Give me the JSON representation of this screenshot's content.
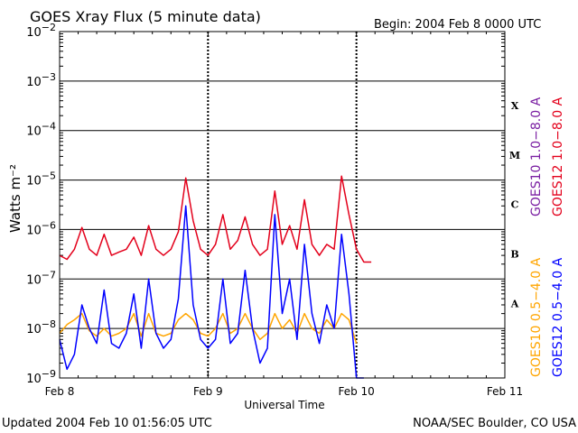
{
  "header": {
    "title": "GOES Xray Flux (5 minute data)",
    "begin": "Begin:  2004 Feb 8 0000 UTC"
  },
  "footer": {
    "updated": "Updated 2004 Feb 10 01:56:05 UTC",
    "credit": "NOAA/SEC Boulder, CO USA"
  },
  "colors": {
    "goes10_long": "#7a1fa2",
    "goes12_long": "#e3001b",
    "goes10_short": "#ffa500",
    "goes12_short": "#0000ff",
    "background": "#ffffff"
  },
  "chart_data": {
    "type": "line",
    "title": "GOES Xray Flux (5 minute data)",
    "xlabel": "Universal Time",
    "ylabel": "Watts m⁻²",
    "yscale": "log",
    "ylim": [
      1e-09,
      0.01
    ],
    "xlim_days": [
      0,
      3
    ],
    "x_tick_labels": [
      "Feb 8",
      "Feb 9",
      "Feb 10",
      "Feb 11"
    ],
    "y_tick_labels": [
      {
        "base": "10",
        "exp": "−9"
      },
      {
        "base": "10",
        "exp": "−8"
      },
      {
        "base": "10",
        "exp": "−7"
      },
      {
        "base": "10",
        "exp": "−6"
      },
      {
        "base": "10",
        "exp": "−5"
      },
      {
        "base": "10",
        "exp": "−4"
      },
      {
        "base": "10",
        "exp": "−3"
      },
      {
        "base": "10",
        "exp": "−2"
      }
    ],
    "flare_classes": [
      "A",
      "B",
      "C",
      "M",
      "X"
    ],
    "legend": {
      "goes10_long": "GOES10 1.0−8.0 A",
      "goes12_long": "GOES12 1.0−8.0 A",
      "goes10_short": "GOES10 0.5−4.0 A",
      "goes12_short": "GOES12 0.5−4.0 A"
    },
    "x_units": "days since Feb 8 0000 UTC",
    "series": [
      {
        "name": "GOES12 1.0−8.0 A",
        "color": "#e3001b",
        "x": [
          0,
          0.05,
          0.1,
          0.15,
          0.2,
          0.25,
          0.3,
          0.35,
          0.4,
          0.45,
          0.5,
          0.55,
          0.6,
          0.65,
          0.7,
          0.75,
          0.8,
          0.85,
          0.9,
          0.95,
          1.0,
          1.05,
          1.1,
          1.15,
          1.2,
          1.25,
          1.3,
          1.35,
          1.4,
          1.45,
          1.5,
          1.55,
          1.6,
          1.65,
          1.7,
          1.75,
          1.8,
          1.85,
          1.9,
          1.95,
          2.0,
          2.05,
          2.1
        ],
        "y": [
          3e-07,
          2.5e-07,
          4e-07,
          1.1e-06,
          4e-07,
          3e-07,
          8e-07,
          3e-07,
          3.5e-07,
          4e-07,
          7e-07,
          3e-07,
          1.2e-06,
          4e-07,
          3e-07,
          4e-07,
          9e-07,
          1.1e-05,
          1.5e-06,
          4e-07,
          3e-07,
          5e-07,
          2e-06,
          4e-07,
          6e-07,
          1.8e-06,
          5e-07,
          3e-07,
          4e-07,
          6e-06,
          5e-07,
          1.2e-06,
          4e-07,
          4e-06,
          5e-07,
          3e-07,
          5e-07,
          4e-07,
          1.2e-05,
          2e-06,
          4e-07,
          2.2e-07,
          2.2e-07
        ]
      },
      {
        "name": "GOES10 0.5−4.0 A",
        "color": "#ffa500",
        "x": [
          0,
          0.05,
          0.1,
          0.15,
          0.2,
          0.25,
          0.3,
          0.35,
          0.4,
          0.45,
          0.5,
          0.55,
          0.6,
          0.65,
          0.7,
          0.75,
          0.8,
          0.85,
          0.9,
          0.95,
          1.0,
          1.05,
          1.1,
          1.15,
          1.2,
          1.25,
          1.3,
          1.35,
          1.4,
          1.45,
          1.5,
          1.55,
          1.6,
          1.65,
          1.7,
          1.75,
          1.8,
          1.85,
          1.9,
          1.95,
          2.0
        ],
        "y": [
          8e-09,
          1.2e-08,
          1.5e-08,
          2e-08,
          9e-09,
          7e-09,
          1e-08,
          7e-09,
          8e-09,
          1e-08,
          2e-08,
          7e-09,
          2e-08,
          8e-09,
          7e-09,
          8e-09,
          1.5e-08,
          2e-08,
          1.5e-08,
          8e-09,
          7e-09,
          1e-08,
          2e-08,
          8e-09,
          1e-08,
          2e-08,
          1e-08,
          6e-09,
          8e-09,
          2e-08,
          1e-08,
          1.5e-08,
          8e-09,
          2e-08,
          1e-08,
          8e-09,
          1.5e-08,
          1e-08,
          2e-08,
          1.5e-08,
          5e-09
        ]
      },
      {
        "name": "GOES12 0.5−4.0 A",
        "color": "#0000ff",
        "x": [
          0,
          0.05,
          0.1,
          0.15,
          0.2,
          0.25,
          0.3,
          0.35,
          0.4,
          0.45,
          0.5,
          0.55,
          0.6,
          0.65,
          0.7,
          0.75,
          0.8,
          0.85,
          0.9,
          0.95,
          1.0,
          1.05,
          1.1,
          1.15,
          1.2,
          1.25,
          1.3,
          1.35,
          1.4,
          1.45,
          1.5,
          1.55,
          1.6,
          1.65,
          1.7,
          1.75,
          1.8,
          1.85,
          1.9,
          1.95,
          2.0,
          2.05
        ],
        "y": [
          6e-09,
          1.5e-09,
          3e-09,
          3e-08,
          1e-08,
          5e-09,
          6e-08,
          5e-09,
          4e-09,
          8e-09,
          5e-08,
          4e-09,
          1e-07,
          8e-09,
          4e-09,
          6e-09,
          4e-08,
          3e-06,
          3e-08,
          6e-09,
          4e-09,
          6e-09,
          1e-07,
          5e-09,
          8e-09,
          1.5e-07,
          1e-08,
          2e-09,
          4e-09,
          2e-06,
          2e-08,
          1e-07,
          6e-09,
          5e-07,
          2e-08,
          5e-09,
          3e-08,
          1e-08,
          8e-07,
          5e-08,
          1e-09,
          1e-09
        ]
      }
    ]
  }
}
